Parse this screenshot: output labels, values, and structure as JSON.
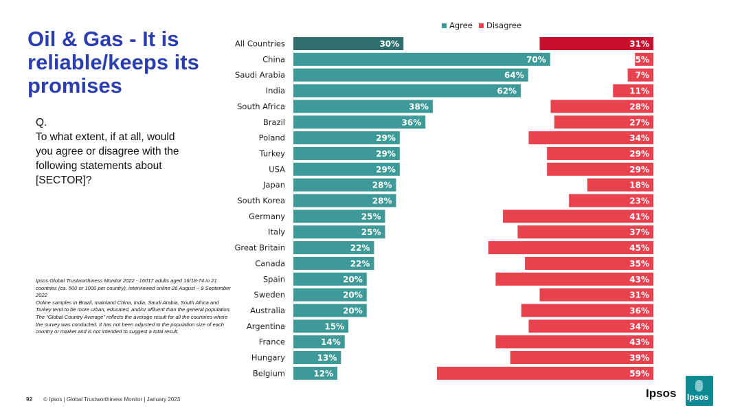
{
  "slide": {
    "title": "Oil & Gas - It is reliable/keeps its promises",
    "question_label": "Q.",
    "question_text": "To what extent, if at all, would you agree or disagree with the following statements about [SECTOR]?",
    "notes": [
      "Ipsos Global Trustworthiness Monitor 2022 - 16017 adults aged 16/18-74 in 21 countries (ca. 500 or 1000 per country), interviewed online 26 August – 9 September 2022",
      "Online samples in Brazil, mainland China, India, Saudi Arabia, South Africa and Turkey tend to be more urban, educated, and/or affluent than the general population.",
      "The “Global Country Average” reflects the average result for all the countries where the survey was conducted. It has not been adjusted to the population size of each country or market and is not intended to suggest a total result."
    ],
    "page_number": "92",
    "footer": "© Ipsos | Global Trustworthiness Monitor | January 2023",
    "logo_text": "Ipsos",
    "logo_box_text": "Ipsos"
  },
  "colors": {
    "title": "#2b3eb1",
    "agree": "#3e9a98",
    "agree_highlight": "#2f6f6f",
    "disagree": "#e8424f",
    "disagree_highlight": "#c8102e"
  },
  "chart_data": {
    "type": "bar",
    "layout": "diverging",
    "legend": [
      "Agree",
      "Disagree"
    ],
    "legend_position": "top",
    "xlim": [
      0,
      100
    ],
    "categories": [
      "All Countries",
      "China",
      "Saudi Arabia",
      "India",
      "South Africa",
      "Brazil",
      "Poland",
      "Turkey",
      "USA",
      "Japan",
      "South Korea",
      "Germany",
      "Italy",
      "Great Britain",
      "Canada",
      "Spain",
      "Sweden",
      "Australia",
      "Argentina",
      "France",
      "Hungary",
      "Belgium"
    ],
    "series": [
      {
        "name": "Agree",
        "values": [
          30,
          70,
          64,
          62,
          38,
          36,
          29,
          29,
          29,
          28,
          28,
          25,
          25,
          22,
          22,
          20,
          20,
          20,
          15,
          14,
          13,
          12
        ]
      },
      {
        "name": "Disagree",
        "values": [
          31,
          5,
          7,
          11,
          28,
          27,
          34,
          29,
          29,
          18,
          23,
          41,
          37,
          45,
          35,
          43,
          31,
          36,
          34,
          43,
          39,
          59
        ]
      }
    ],
    "value_suffix": "%"
  }
}
